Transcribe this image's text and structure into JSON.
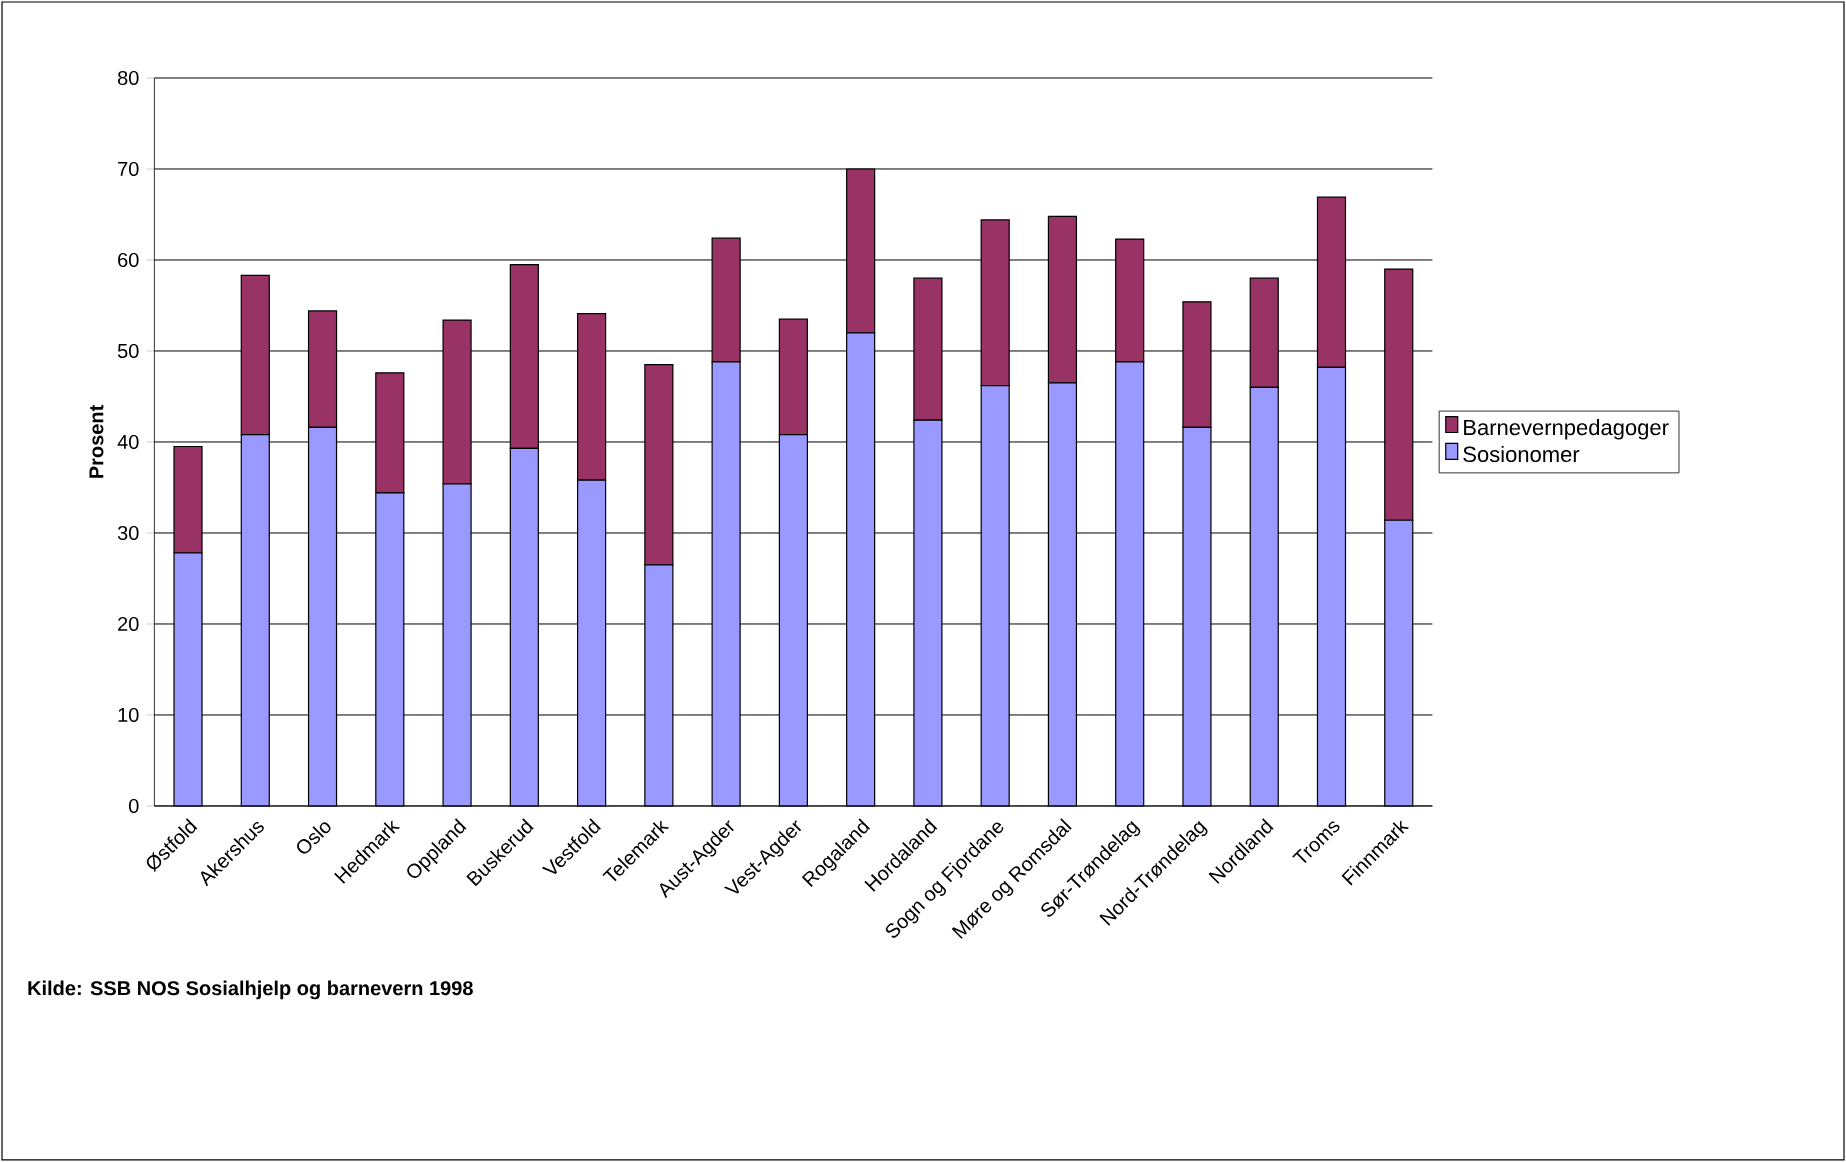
{
  "chart_data": {
    "type": "bar",
    "stacked": true,
    "ylabel": "Prosent",
    "categories": [
      "Østfold",
      "Akershus",
      "Oslo",
      "Hedmark",
      "Oppland",
      "Buskerud",
      "Vestfold",
      "Telemark",
      "Aust-Agder",
      "Vest-Agder",
      "Rogaland",
      "Hordaland",
      "Sogn og Fjordane",
      "Møre og Romsdal",
      "Sør-Trøndelag",
      "Nord-Trøndelag",
      "Nordland",
      "Troms",
      "Finnmark"
    ],
    "series": [
      {
        "name": "Sosionomer",
        "color": "#9999ff",
        "values": [
          27.8,
          40.8,
          41.6,
          34.4,
          35.4,
          39.3,
          35.8,
          26.5,
          48.8,
          40.8,
          52.0,
          42.4,
          46.2,
          46.5,
          48.8,
          41.6,
          46.0,
          48.2,
          31.4
        ]
      },
      {
        "name": "Barnevernpedagoger",
        "color": "#993366",
        "values": [
          11.7,
          17.5,
          12.8,
          13.2,
          18.0,
          20.2,
          18.3,
          22.0,
          13.6,
          12.7,
          18.0,
          15.6,
          18.2,
          18.3,
          13.5,
          13.8,
          12.0,
          18.7,
          27.6
        ]
      }
    ],
    "ylim": [
      0,
      80
    ],
    "yticks": [
      0,
      10,
      20,
      30,
      40,
      50,
      60,
      70,
      80
    ],
    "grid": "y",
    "legend": "right",
    "annotations": [
      "Kilde: SSB NOS Sosialhjelp og barnevern 1998"
    ]
  }
}
